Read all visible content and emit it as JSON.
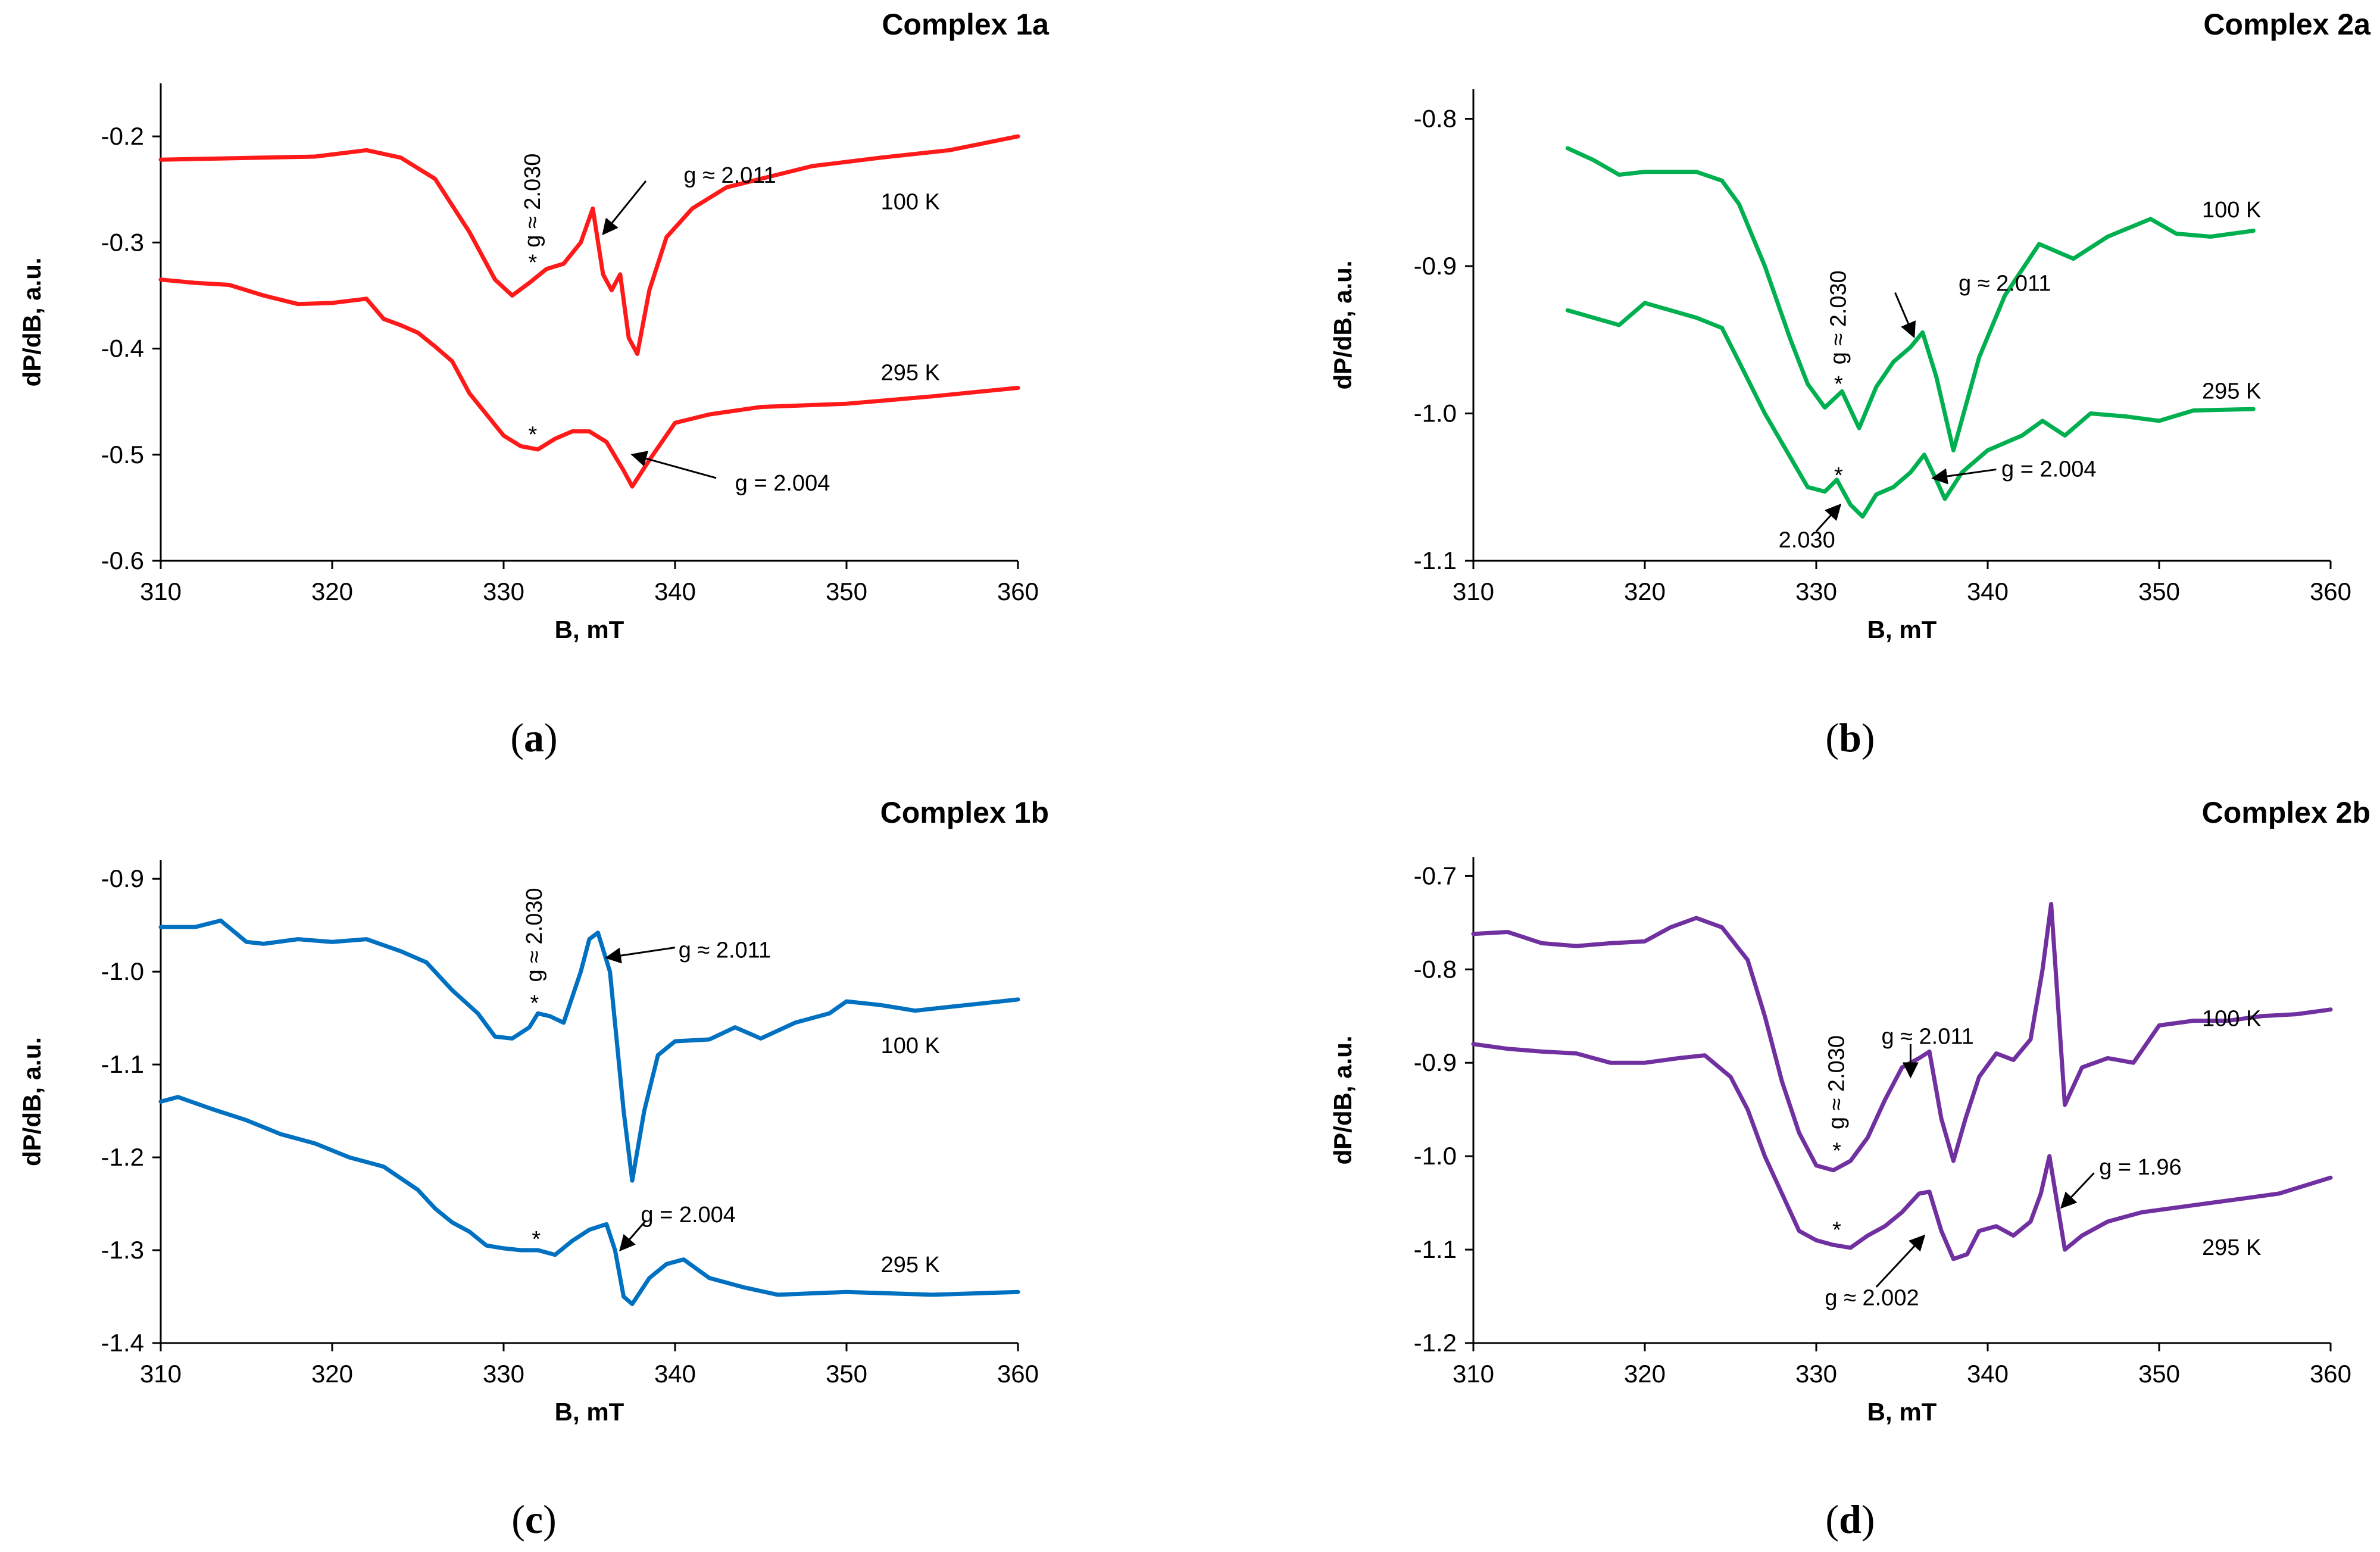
{
  "chart_data": [
    {
      "type": "line",
      "title": "Complex 1a",
      "caption": "a",
      "xlabel": "B, mT",
      "ylabel": "dP/dB, a.u.",
      "xlim": [
        310,
        360
      ],
      "ylim": [
        -0.6,
        -0.15
      ],
      "xticks": [
        310,
        320,
        330,
        340,
        350,
        360
      ],
      "yticks": [
        -0.6,
        -0.5,
        -0.4,
        -0.3,
        -0.2
      ],
      "ytick_labels": [
        "-0.6",
        "-0.5",
        "-0.4",
        "-0.3",
        "-0.2"
      ],
      "color": "#ff1a1a",
      "series": [
        {
          "name": "100 K",
          "x": [
            310,
            313,
            316,
            319,
            322,
            324,
            326,
            328,
            329.5,
            330.5,
            331.5,
            332.5,
            333.5,
            334.5,
            335.2,
            335.8,
            336.3,
            336.8,
            337.3,
            337.8,
            338.5,
            339.5,
            341,
            343,
            345,
            348,
            352,
            356,
            360
          ],
          "y": [
            -0.222,
            -0.221,
            -0.22,
            -0.219,
            -0.213,
            -0.22,
            -0.24,
            -0.29,
            -0.335,
            -0.35,
            -0.338,
            -0.325,
            -0.32,
            -0.3,
            -0.268,
            -0.33,
            -0.345,
            -0.33,
            -0.39,
            -0.405,
            -0.345,
            -0.295,
            -0.268,
            -0.248,
            -0.24,
            -0.228,
            -0.22,
            -0.213,
            -0.2
          ]
        },
        {
          "name": "295 K",
          "x": [
            310,
            312,
            314,
            316,
            318,
            320,
            322,
            323,
            324,
            325,
            326,
            327,
            328,
            329,
            330,
            331,
            332,
            333,
            334,
            335,
            336,
            337,
            337.5,
            338.5,
            340,
            342,
            345,
            350,
            355,
            360
          ],
          "y": [
            -0.335,
            -0.338,
            -0.34,
            -0.35,
            -0.358,
            -0.357,
            -0.353,
            -0.372,
            -0.378,
            -0.385,
            -0.398,
            -0.412,
            -0.442,
            -0.462,
            -0.482,
            -0.492,
            -0.495,
            -0.485,
            -0.478,
            -0.478,
            -0.488,
            -0.515,
            -0.53,
            -0.505,
            -0.47,
            -0.462,
            -0.455,
            -0.452,
            -0.445,
            -0.437
          ]
        }
      ],
      "annotations": [
        {
          "text": "100 K",
          "x": 352,
          "y": -0.262,
          "arrow": false
        },
        {
          "text": "295 K",
          "x": 352,
          "y": -0.423,
          "arrow": false
        },
        {
          "text": "g ≈ 2.030",
          "x": 331.7,
          "y": -0.33,
          "rotated": true,
          "arrow": false
        },
        {
          "text": "*",
          "x": 331.7,
          "y": -0.326,
          "arrow": false
        },
        {
          "text": "*",
          "x": 331.7,
          "y": -0.488,
          "arrow": false
        },
        {
          "text": "g ≈ 2.011",
          "x": 340.5,
          "y": -0.237,
          "arrow": true,
          "ax": 338.3,
          "ay": -0.242,
          "tx": 335.8,
          "ty": -0.292
        },
        {
          "text": "g = 2.004",
          "x": 343.5,
          "y": -0.527,
          "arrow": true,
          "ax": 342.4,
          "ay": -0.522,
          "tx": 337.5,
          "ty": -0.5
        }
      ]
    },
    {
      "type": "line",
      "title": "Complex 2a",
      "caption": "b",
      "xlabel": "B, mT",
      "ylabel": "dP/dB, a.u.",
      "xlim": [
        310,
        360
      ],
      "ylim": [
        -1.1,
        -0.78
      ],
      "xticks": [
        310,
        320,
        330,
        340,
        350,
        360
      ],
      "yticks": [
        -1.1,
        -1.0,
        -0.9,
        -0.8
      ],
      "ytick_labels": [
        "-1.1",
        "-1.0",
        "-0.9",
        "-0.8"
      ],
      "color": "#00b050",
      "series": [
        {
          "name": "100 K",
          "x": [
            315.5,
            317,
            318.5,
            320,
            321.5,
            323,
            324.5,
            325.5,
            327,
            328.5,
            329.5,
            330.5,
            331.5,
            332.5,
            333.5,
            334.5,
            335.5,
            336.2,
            337,
            338,
            339.5,
            341,
            343,
            345,
            347,
            349.5,
            351,
            353,
            355.5
          ],
          "y": [
            -0.82,
            -0.828,
            -0.838,
            -0.836,
            -0.836,
            -0.836,
            -0.842,
            -0.858,
            -0.9,
            -0.95,
            -0.98,
            -0.996,
            -0.985,
            -1.01,
            -0.982,
            -0.965,
            -0.955,
            -0.945,
            -0.975,
            -1.025,
            -0.962,
            -0.92,
            -0.885,
            -0.895,
            -0.88,
            -0.868,
            -0.878,
            -0.88,
            -0.876
          ]
        },
        {
          "name": "295 K",
          "x": [
            315.5,
            317,
            318.5,
            320,
            321.5,
            323,
            324.5,
            325.5,
            327,
            328.5,
            329.5,
            330.5,
            331.2,
            332,
            332.7,
            333.5,
            334.5,
            335.5,
            336.3,
            337,
            337.5,
            338.5,
            340,
            342,
            343.2,
            344.5,
            346,
            348,
            350,
            352,
            355.5
          ],
          "y": [
            -0.93,
            -0.935,
            -0.94,
            -0.925,
            -0.93,
            -0.935,
            -0.942,
            -0.965,
            -1.0,
            -1.03,
            -1.05,
            -1.053,
            -1.045,
            -1.062,
            -1.07,
            -1.055,
            -1.05,
            -1.04,
            -1.028,
            -1.045,
            -1.058,
            -1.04,
            -1.025,
            -1.015,
            -1.005,
            -1.015,
            -1.0,
            -1.002,
            -1.005,
            -0.998,
            -0.997
          ]
        }
      ],
      "annotations": [
        {
          "text": "100 K",
          "x": 352.5,
          "y": -0.862,
          "arrow": false
        },
        {
          "text": "295 K",
          "x": 352.5,
          "y": -0.985,
          "arrow": false
        },
        {
          "text": "g ≈ 2.030",
          "x": 331.3,
          "y": -0.985,
          "rotated": true,
          "arrow": false
        },
        {
          "text": "*",
          "x": 331.3,
          "y": -0.985,
          "arrow": false
        },
        {
          "text": "*",
          "x": 331.3,
          "y": -1.047,
          "arrow": false
        },
        {
          "text": "g ≈ 2.011",
          "x": 338.3,
          "y": -0.912,
          "arrow": true,
          "ax": 334.6,
          "ay": -0.918,
          "tx": 335.7,
          "ty": -0.948
        },
        {
          "text": "g = 2.004",
          "x": 340.8,
          "y": -1.038,
          "arrow": true,
          "ax": 340.5,
          "ay": -1.038,
          "tx": 336.8,
          "ty": -1.044
        },
        {
          "text": "2.030",
          "x": 327.8,
          "y": -1.086,
          "arrow": true,
          "ax": 330,
          "ay": -1.08,
          "tx": 331.4,
          "ty": -1.062
        }
      ]
    },
    {
      "type": "line",
      "title": "Complex 1b",
      "caption": "c",
      "xlabel": "B, mT",
      "ylabel": "dP/dB, a.u.",
      "xlim": [
        310,
        360
      ],
      "ylim": [
        -1.4,
        -0.88
      ],
      "xticks": [
        310,
        320,
        330,
        340,
        350,
        360
      ],
      "yticks": [
        -1.4,
        -1.3,
        -1.2,
        -1.1,
        -1.0,
        -0.9
      ],
      "ytick_labels": [
        "-1.4",
        "-1.3",
        "-1.2",
        "-1.1",
        "-1.0",
        "-0.9"
      ],
      "color": "#0070c0",
      "series": [
        {
          "name": "100 K",
          "x": [
            310,
            312,
            313.5,
            315,
            316,
            318,
            320,
            322,
            324,
            325.5,
            327,
            328.5,
            329.5,
            330.5,
            331.5,
            332,
            332.7,
            333.5,
            334.5,
            335,
            335.5,
            336.2,
            337,
            337.5,
            338.2,
            339,
            340,
            342,
            343.5,
            345,
            347,
            349,
            350,
            352,
            354,
            356,
            358,
            360
          ],
          "y": [
            -0.952,
            -0.952,
            -0.945,
            -0.968,
            -0.97,
            -0.965,
            -0.968,
            -0.965,
            -0.978,
            -0.99,
            -1.02,
            -1.045,
            -1.07,
            -1.072,
            -1.06,
            -1.045,
            -1.048,
            -1.055,
            -1.0,
            -0.965,
            -0.958,
            -1.0,
            -1.15,
            -1.225,
            -1.15,
            -1.09,
            -1.075,
            -1.073,
            -1.06,
            -1.072,
            -1.055,
            -1.045,
            -1.032,
            -1.036,
            -1.042,
            -1.038,
            -1.034,
            -1.03
          ]
        },
        {
          "name": "295 K",
          "x": [
            310,
            311,
            313,
            315,
            317,
            319,
            321,
            323,
            325,
            326,
            327,
            328,
            329,
            330,
            331,
            332,
            333,
            334,
            335,
            336,
            336.5,
            337,
            337.5,
            338.5,
            339.5,
            340.5,
            342,
            344,
            346,
            350,
            355,
            360
          ],
          "y": [
            -1.14,
            -1.135,
            -1.148,
            -1.16,
            -1.175,
            -1.185,
            -1.2,
            -1.21,
            -1.235,
            -1.255,
            -1.27,
            -1.28,
            -1.295,
            -1.298,
            -1.3,
            -1.3,
            -1.305,
            -1.29,
            -1.278,
            -1.272,
            -1.3,
            -1.35,
            -1.358,
            -1.33,
            -1.315,
            -1.31,
            -1.33,
            -1.34,
            -1.348,
            -1.345,
            -1.348,
            -1.345
          ]
        }
      ],
      "annotations": [
        {
          "text": "100 K",
          "x": 352,
          "y": -1.08,
          "arrow": false
        },
        {
          "text": "295 K",
          "x": 352,
          "y": -1.316,
          "arrow": false
        },
        {
          "text": "g ≈ 2.030",
          "x": 331.8,
          "y": -1.04,
          "rotated": true,
          "arrow": false
        },
        {
          "text": "*",
          "x": 331.8,
          "y": -1.042,
          "arrow": false
        },
        {
          "text": "*",
          "x": 331.9,
          "y": -1.296,
          "arrow": false
        },
        {
          "text": "g ≈ 2.011",
          "x": 340.2,
          "y": -0.977,
          "arrow": true,
          "ax": 340,
          "ay": -0.974,
          "tx": 336,
          "ty": -0.985
        },
        {
          "text": "g = 2.004",
          "x": 338,
          "y": -1.262,
          "arrow": true,
          "ax": 338.3,
          "ay": -1.268,
          "tx": 336.8,
          "ty": -1.3
        }
      ]
    },
    {
      "type": "line",
      "title": "Complex 2b",
      "caption": "d",
      "xlabel": "B, mT",
      "ylabel": "dP/dB, a.u.",
      "xlim": [
        310,
        360
      ],
      "ylim": [
        -1.2,
        -0.68
      ],
      "xticks": [
        310,
        320,
        330,
        340,
        350,
        360
      ],
      "yticks": [
        -1.2,
        -1.1,
        -1.0,
        -0.9,
        -0.8,
        -0.7
      ],
      "ytick_labels": [
        "-1.2",
        "-1.1",
        "-1.0",
        "-0.9",
        "-0.8",
        "-0.7"
      ],
      "color": "#7030a0",
      "series": [
        {
          "name": "100 K",
          "x": [
            310,
            312,
            314,
            316,
            318,
            320,
            321.5,
            323,
            324.5,
            326,
            327,
            328,
            329,
            330,
            331,
            332,
            333,
            334,
            335,
            336,
            336.6,
            337.3,
            338,
            338.7,
            339.5,
            340.5,
            341.5,
            342.5,
            343.2,
            343.7,
            344.5,
            345.5,
            347,
            348.5,
            350,
            352,
            354,
            356,
            358,
            360
          ],
          "y": [
            -0.762,
            -0.76,
            -0.772,
            -0.775,
            -0.772,
            -0.77,
            -0.755,
            -0.745,
            -0.755,
            -0.79,
            -0.85,
            -0.92,
            -0.975,
            -1.01,
            -1.015,
            -1.005,
            -0.98,
            -0.94,
            -0.905,
            -0.895,
            -0.888,
            -0.96,
            -1.005,
            -0.96,
            -0.915,
            -0.89,
            -0.897,
            -0.875,
            -0.8,
            -0.73,
            -0.945,
            -0.905,
            -0.895,
            -0.9,
            -0.86,
            -0.855,
            -0.855,
            -0.85,
            -0.848,
            -0.843
          ]
        },
        {
          "name": "295 K",
          "x": [
            310,
            312,
            314,
            316,
            318,
            320,
            322,
            323.5,
            325,
            326,
            327,
            328,
            329,
            330,
            331,
            332,
            333,
            334,
            335,
            336,
            336.6,
            337.3,
            338,
            338.8,
            339.5,
            340.5,
            341.5,
            342.5,
            343.1,
            343.6,
            344.5,
            345.5,
            347,
            349,
            351,
            353,
            355,
            357,
            360
          ],
          "y": [
            -0.88,
            -0.885,
            -0.888,
            -0.89,
            -0.9,
            -0.9,
            -0.895,
            -0.892,
            -0.915,
            -0.95,
            -1.0,
            -1.04,
            -1.08,
            -1.09,
            -1.095,
            -1.098,
            -1.085,
            -1.075,
            -1.06,
            -1.04,
            -1.038,
            -1.08,
            -1.11,
            -1.105,
            -1.08,
            -1.075,
            -1.085,
            -1.07,
            -1.04,
            -1.0,
            -1.1,
            -1.085,
            -1.07,
            -1.06,
            -1.055,
            -1.05,
            -1.045,
            -1.04,
            -1.023
          ]
        }
      ],
      "annotations": [
        {
          "text": "100 K",
          "x": 352.5,
          "y": -0.853,
          "arrow": false
        },
        {
          "text": "295 K",
          "x": 352.5,
          "y": -1.098,
          "arrow": false
        },
        {
          "text": "g ≈ 2.030",
          "x": 331.2,
          "y": -1.0,
          "rotated": true,
          "arrow": false
        },
        {
          "text": "*",
          "x": 331.2,
          "y": -1.002,
          "arrow": false
        },
        {
          "text": "*",
          "x": 331.2,
          "y": -1.087,
          "arrow": false
        },
        {
          "text": "g ≈ 2.011",
          "x": 333.8,
          "y": -0.872,
          "arrow": true,
          "ax": 335.5,
          "ay": -0.88,
          "tx": 335.5,
          "ty": -0.915
        },
        {
          "text": "g = 1.96",
          "x": 346.5,
          "y": -1.012,
          "arrow": true,
          "ax": 346.2,
          "ay": -1.018,
          "tx": 344.3,
          "ty": -1.055
        },
        {
          "text": "g ≈ 2.002",
          "x": 330.5,
          "y": -1.152,
          "arrow": true,
          "ax": 333.5,
          "ay": -1.14,
          "tx": 336.3,
          "ty": -1.085
        }
      ]
    }
  ]
}
